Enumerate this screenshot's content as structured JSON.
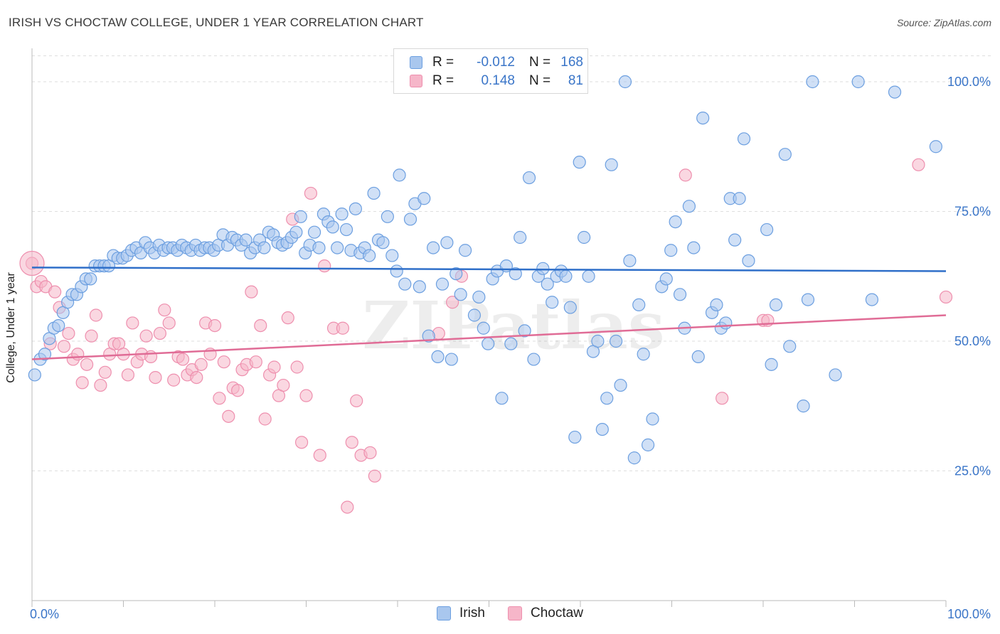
{
  "title": "IRISH VS CHOCTAW COLLEGE, UNDER 1 YEAR CORRELATION CHART",
  "source": "Source: ZipAtlas.com",
  "legend_top": {
    "rows": [
      {
        "r_label": "R =",
        "r_value": "-0.012",
        "n_label": "N =",
        "n_value": "168"
      },
      {
        "r_label": "R =",
        "r_value": "0.148",
        "n_label": "N =",
        "n_value": "81"
      }
    ]
  },
  "colors": {
    "irish_fill": "#a9c7ee",
    "irish_stroke": "#6c9fe0",
    "irish_line": "#2f6fc9",
    "choctaw_fill": "#f6b6c9",
    "choctaw_stroke": "#ee8fae",
    "choctaw_line": "#e06c96",
    "tick_label": "#3a75c8",
    "grid": "#dedede"
  },
  "chart_data": {
    "type": "scatter",
    "xlabel": "",
    "ylabel": "College, Under 1 year",
    "xlim": [
      0,
      100
    ],
    "ylim": [
      0,
      105
    ],
    "x_tick_labels": [
      "0.0%",
      "100.0%"
    ],
    "y_ticks": [
      25,
      50,
      75,
      100
    ],
    "y_tick_labels": [
      "25.0%",
      "50.0%",
      "75.0%",
      "100.0%"
    ],
    "grid": "horizontal dashed",
    "watermark": "ZIPatlas",
    "series": [
      {
        "name": "Irish",
        "r": -0.012,
        "n": 168,
        "trend": {
          "x0": 0,
          "y0": 64.2,
          "x1": 100,
          "y1": 63.5
        },
        "points": [
          [
            0.3,
            43.5
          ],
          [
            0.9,
            46.5
          ],
          [
            1.4,
            47.5
          ],
          [
            1.9,
            50.5
          ],
          [
            2.4,
            52.5
          ],
          [
            2.9,
            53.0
          ],
          [
            3.4,
            55.5
          ],
          [
            3.9,
            57.5
          ],
          [
            4.4,
            59.0
          ],
          [
            4.9,
            59.0
          ],
          [
            5.4,
            60.5
          ],
          [
            5.9,
            62.0
          ],
          [
            6.4,
            62.0
          ],
          [
            6.9,
            64.5
          ],
          [
            7.4,
            64.5
          ],
          [
            7.9,
            64.5
          ],
          [
            8.4,
            64.5
          ],
          [
            8.9,
            66.5
          ],
          [
            9.4,
            66.0
          ],
          [
            9.9,
            66.0
          ],
          [
            10.4,
            66.5
          ],
          [
            10.9,
            67.5
          ],
          [
            11.4,
            68.0
          ],
          [
            11.9,
            67.0
          ],
          [
            12.4,
            69.0
          ],
          [
            12.9,
            68.0
          ],
          [
            13.4,
            67.0
          ],
          [
            13.9,
            68.5
          ],
          [
            14.4,
            67.5
          ],
          [
            14.9,
            68.0
          ],
          [
            15.4,
            68.0
          ],
          [
            15.9,
            67.5
          ],
          [
            16.4,
            68.5
          ],
          [
            16.9,
            68.0
          ],
          [
            17.4,
            67.5
          ],
          [
            17.9,
            68.5
          ],
          [
            18.4,
            67.5
          ],
          [
            18.9,
            68.0
          ],
          [
            19.4,
            68.0
          ],
          [
            19.9,
            67.5
          ],
          [
            20.4,
            68.5
          ],
          [
            20.9,
            70.5
          ],
          [
            21.4,
            68.5
          ],
          [
            21.9,
            70.0
          ],
          [
            22.4,
            69.5
          ],
          [
            22.9,
            68.5
          ],
          [
            23.4,
            69.5
          ],
          [
            23.9,
            67.0
          ],
          [
            24.4,
            68.0
          ],
          [
            24.9,
            69.5
          ],
          [
            25.4,
            68.0
          ],
          [
            25.9,
            71.0
          ],
          [
            26.4,
            70.5
          ],
          [
            26.9,
            69.0
          ],
          [
            27.4,
            68.5
          ],
          [
            27.9,
            69.0
          ],
          [
            28.4,
            70.0
          ],
          [
            28.9,
            71.0
          ],
          [
            29.4,
            74.0
          ],
          [
            29.9,
            67.0
          ],
          [
            30.4,
            68.5
          ],
          [
            30.9,
            71.0
          ],
          [
            31.4,
            68.0
          ],
          [
            31.9,
            74.5
          ],
          [
            32.4,
            73.0
          ],
          [
            32.9,
            72.0
          ],
          [
            33.4,
            68.0
          ],
          [
            33.9,
            74.5
          ],
          [
            34.4,
            71.5
          ],
          [
            34.9,
            67.5
          ],
          [
            35.4,
            75.5
          ],
          [
            35.9,
            67.0
          ],
          [
            36.4,
            68.0
          ],
          [
            36.9,
            66.5
          ],
          [
            37.4,
            78.5
          ],
          [
            37.9,
            69.5
          ],
          [
            38.4,
            69.0
          ],
          [
            38.9,
            74.0
          ],
          [
            39.4,
            66.5
          ],
          [
            39.9,
            63.5
          ],
          [
            40.2,
            82.0
          ],
          [
            40.8,
            61.0
          ],
          [
            41.4,
            73.5
          ],
          [
            41.9,
            76.5
          ],
          [
            42.4,
            60.5
          ],
          [
            42.9,
            77.5
          ],
          [
            43.4,
            51.0
          ],
          [
            43.9,
            68.0
          ],
          [
            44.4,
            47.0
          ],
          [
            44.9,
            61.0
          ],
          [
            45.4,
            69.0
          ],
          [
            45.9,
            46.5
          ],
          [
            46.4,
            63.0
          ],
          [
            46.9,
            59.0
          ],
          [
            47.4,
            67.5
          ],
          [
            48.4,
            55.0
          ],
          [
            48.9,
            58.5
          ],
          [
            49.4,
            52.5
          ],
          [
            49.9,
            49.5
          ],
          [
            50.4,
            62.0
          ],
          [
            50.9,
            63.5
          ],
          [
            51.4,
            39.0
          ],
          [
            51.9,
            64.5
          ],
          [
            52.4,
            49.5
          ],
          [
            52.9,
            63.0
          ],
          [
            53.4,
            70.0
          ],
          [
            53.9,
            52.0
          ],
          [
            54.4,
            81.5
          ],
          [
            54.9,
            46.5
          ],
          [
            55.4,
            62.5
          ],
          [
            55.9,
            64.0
          ],
          [
            56.4,
            61.0
          ],
          [
            56.9,
            57.5
          ],
          [
            57.4,
            62.5
          ],
          [
            57.9,
            63.5
          ],
          [
            58.4,
            62.5
          ],
          [
            58.9,
            56.5
          ],
          [
            59.4,
            31.5
          ],
          [
            59.9,
            84.5
          ],
          [
            60.4,
            70.0
          ],
          [
            60.9,
            62.5
          ],
          [
            61.4,
            48.0
          ],
          [
            61.9,
            50.0
          ],
          [
            62.4,
            33.0
          ],
          [
            62.9,
            39.0
          ],
          [
            63.4,
            84.0
          ],
          [
            63.9,
            50.0
          ],
          [
            64.4,
            41.5
          ],
          [
            64.9,
            100.0
          ],
          [
            65.4,
            65.5
          ],
          [
            65.9,
            27.5
          ],
          [
            66.4,
            57.0
          ],
          [
            66.9,
            47.5
          ],
          [
            67.4,
            30.0
          ],
          [
            67.9,
            35.0
          ],
          [
            68.9,
            60.5
          ],
          [
            69.4,
            62.0
          ],
          [
            69.9,
            67.5
          ],
          [
            70.4,
            73.0
          ],
          [
            70.9,
            59.0
          ],
          [
            71.4,
            52.5
          ],
          [
            71.9,
            76.0
          ],
          [
            72.4,
            68.0
          ],
          [
            72.9,
            47.0
          ],
          [
            73.4,
            93.0
          ],
          [
            74.4,
            55.5
          ],
          [
            74.9,
            57.0
          ],
          [
            75.4,
            52.5
          ],
          [
            75.9,
            53.5
          ],
          [
            76.4,
            77.5
          ],
          [
            76.9,
            69.5
          ],
          [
            77.4,
            77.5
          ],
          [
            77.9,
            89.0
          ],
          [
            78.4,
            65.5
          ],
          [
            80.4,
            71.5
          ],
          [
            80.9,
            45.5
          ],
          [
            81.4,
            57.0
          ],
          [
            82.4,
            86.0
          ],
          [
            82.9,
            49.0
          ],
          [
            84.4,
            37.5
          ],
          [
            84.9,
            58.0
          ],
          [
            85.4,
            100.0
          ],
          [
            87.9,
            43.5
          ],
          [
            90.4,
            100.0
          ],
          [
            91.9,
            58.0
          ],
          [
            94.4,
            98.0
          ],
          [
            98.9,
            87.5
          ]
        ]
      },
      {
        "name": "Choctaw",
        "r": 0.148,
        "n": 81,
        "trend": {
          "x0": 0,
          "y0": 46.5,
          "x1": 100,
          "y1": 55.0
        },
        "points": [
          [
            0.5,
            60.5
          ],
          [
            1.0,
            61.5
          ],
          [
            1.5,
            60.5
          ],
          [
            2.0,
            49.5
          ],
          [
            2.5,
            59.5
          ],
          [
            3.0,
            56.5
          ],
          [
            3.5,
            49.0
          ],
          [
            4.0,
            51.5
          ],
          [
            4.5,
            46.5
          ],
          [
            5.0,
            47.5
          ],
          [
            5.5,
            42.0
          ],
          [
            6.0,
            45.5
          ],
          [
            6.5,
            51.0
          ],
          [
            7.0,
            55.0
          ],
          [
            7.5,
            41.5
          ],
          [
            8.0,
            44.0
          ],
          [
            8.5,
            47.5
          ],
          [
            9.0,
            49.5
          ],
          [
            9.5,
            49.5
          ],
          [
            10.0,
            47.5
          ],
          [
            10.5,
            43.5
          ],
          [
            11.0,
            53.5
          ],
          [
            11.5,
            46.0
          ],
          [
            12.0,
            47.5
          ],
          [
            12.5,
            51.0
          ],
          [
            13.0,
            47.0
          ],
          [
            13.5,
            43.0
          ],
          [
            14.0,
            51.5
          ],
          [
            14.5,
            56.0
          ],
          [
            15.0,
            53.5
          ],
          [
            15.5,
            42.5
          ],
          [
            16.0,
            47.0
          ],
          [
            16.5,
            46.5
          ],
          [
            17.0,
            43.5
          ],
          [
            17.5,
            44.5
          ],
          [
            18.0,
            43.0
          ],
          [
            18.5,
            45.5
          ],
          [
            19.0,
            53.5
          ],
          [
            19.5,
            47.5
          ],
          [
            20.0,
            53.0
          ],
          [
            20.5,
            39.0
          ],
          [
            21.0,
            46.0
          ],
          [
            21.5,
            35.5
          ],
          [
            22.0,
            41.0
          ],
          [
            22.5,
            40.5
          ],
          [
            23.0,
            44.5
          ],
          [
            23.5,
            45.5
          ],
          [
            24.0,
            59.5
          ],
          [
            24.5,
            46.0
          ],
          [
            25.0,
            53.0
          ],
          [
            25.5,
            35.0
          ],
          [
            26.0,
            43.5
          ],
          [
            26.5,
            45.0
          ],
          [
            27.0,
            39.5
          ],
          [
            27.5,
            41.5
          ],
          [
            28.0,
            54.5
          ],
          [
            28.5,
            73.5
          ],
          [
            29.0,
            45.0
          ],
          [
            29.5,
            30.5
          ],
          [
            30.0,
            39.5
          ],
          [
            30.5,
            78.5
          ],
          [
            31.5,
            28.0
          ],
          [
            32.0,
            64.5
          ],
          [
            33.0,
            52.5
          ],
          [
            34.0,
            52.5
          ],
          [
            35.0,
            30.5
          ],
          [
            35.5,
            38.5
          ],
          [
            36.0,
            28.0
          ],
          [
            37.0,
            28.5
          ],
          [
            37.5,
            24.0
          ],
          [
            34.5,
            18.0
          ],
          [
            44.5,
            51.5
          ],
          [
            46.0,
            57.5
          ],
          [
            47.0,
            62.5
          ],
          [
            71.5,
            82.0
          ],
          [
            75.5,
            39.0
          ],
          [
            80.0,
            54.0
          ],
          [
            80.5,
            54.0
          ],
          [
            97.0,
            84.0
          ],
          [
            100.0,
            58.5
          ],
          [
            0.0,
            65.0
          ]
        ]
      }
    ]
  },
  "bottom_legend": [
    {
      "label": "Irish"
    },
    {
      "label": "Choctaw"
    }
  ]
}
